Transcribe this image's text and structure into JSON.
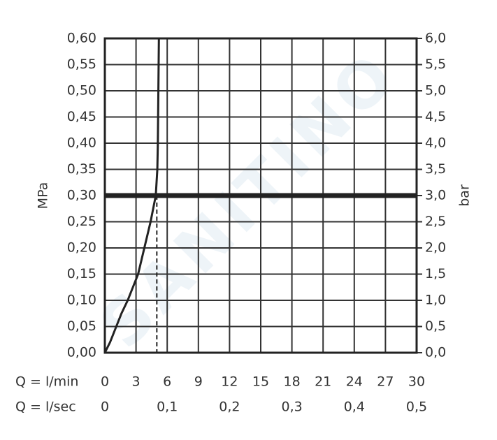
{
  "chart_data": {
    "type": "line",
    "x_row_label": "Q = l/min",
    "x2_row_label": "Q = l/sec",
    "ylabel": "MPa",
    "y2label": "bar",
    "watermark": "SANITINO",
    "xlim": [
      0,
      30
    ],
    "xticks": [
      0,
      3,
      6,
      9,
      12,
      15,
      18,
      21,
      24,
      27,
      30
    ],
    "x2lim": [
      0,
      0.5
    ],
    "x2ticks": [
      0,
      {
        "value": 0.1,
        "label": "0,1"
      },
      {
        "value": 0.2,
        "label": "0,2"
      },
      {
        "value": 0.3,
        "label": "0,3"
      },
      {
        "value": 0.4,
        "label": "0,4"
      },
      {
        "value": 0.5,
        "label": "0,5"
      }
    ],
    "ylim": [
      0,
      0.6
    ],
    "yticks": [
      {
        "value": 0,
        "label": "0,00"
      },
      {
        "value": 0.05,
        "label": "0,05"
      },
      {
        "value": 0.1,
        "label": "0,10"
      },
      {
        "value": 0.15,
        "label": "0,15"
      },
      {
        "value": 0.2,
        "label": "0,20"
      },
      {
        "value": 0.25,
        "label": "0,25"
      },
      {
        "value": 0.3,
        "label": "0,30"
      },
      {
        "value": 0.35,
        "label": "0,35"
      },
      {
        "value": 0.4,
        "label": "0,40"
      },
      {
        "value": 0.45,
        "label": "0,45"
      },
      {
        "value": 0.5,
        "label": "0,50"
      },
      {
        "value": 0.55,
        "label": "0,55"
      },
      {
        "value": 0.6,
        "label": "0,60"
      }
    ],
    "y2lim": [
      0,
      6
    ],
    "y2ticks": [
      {
        "value": 0,
        "label": "0,0"
      },
      {
        "value": 0.5,
        "label": "0,5"
      },
      {
        "value": 1,
        "label": "1,0"
      },
      {
        "value": 1.5,
        "label": "1,5"
      },
      {
        "value": 2,
        "label": "2,0"
      },
      {
        "value": 2.5,
        "label": "2,5"
      },
      {
        "value": 3,
        "label": "3,0"
      },
      {
        "value": 3.5,
        "label": "3,5"
      },
      {
        "value": 4,
        "label": "4,0"
      },
      {
        "value": 4.5,
        "label": "4,5"
      },
      {
        "value": 5,
        "label": "5,0"
      },
      {
        "value": 5.5,
        "label": "5,5"
      },
      {
        "value": 6,
        "label": "6,0"
      }
    ],
    "grid": true,
    "operating_point": {
      "x": 5,
      "y": 0.3
    },
    "series": [
      {
        "color": "#222222",
        "x": [
          0,
          0.5,
          1.1,
          1.6,
          2.2,
          2.7,
          3.2,
          3.8,
          4.4,
          4.9,
          5.05,
          5.1,
          5.15,
          5.2
        ],
        "values": [
          0,
          0.02,
          0.05,
          0.075,
          0.1,
          0.125,
          0.15,
          0.2,
          0.25,
          0.3,
          0.35,
          0.4,
          0.5,
          0.6
        ]
      }
    ]
  }
}
